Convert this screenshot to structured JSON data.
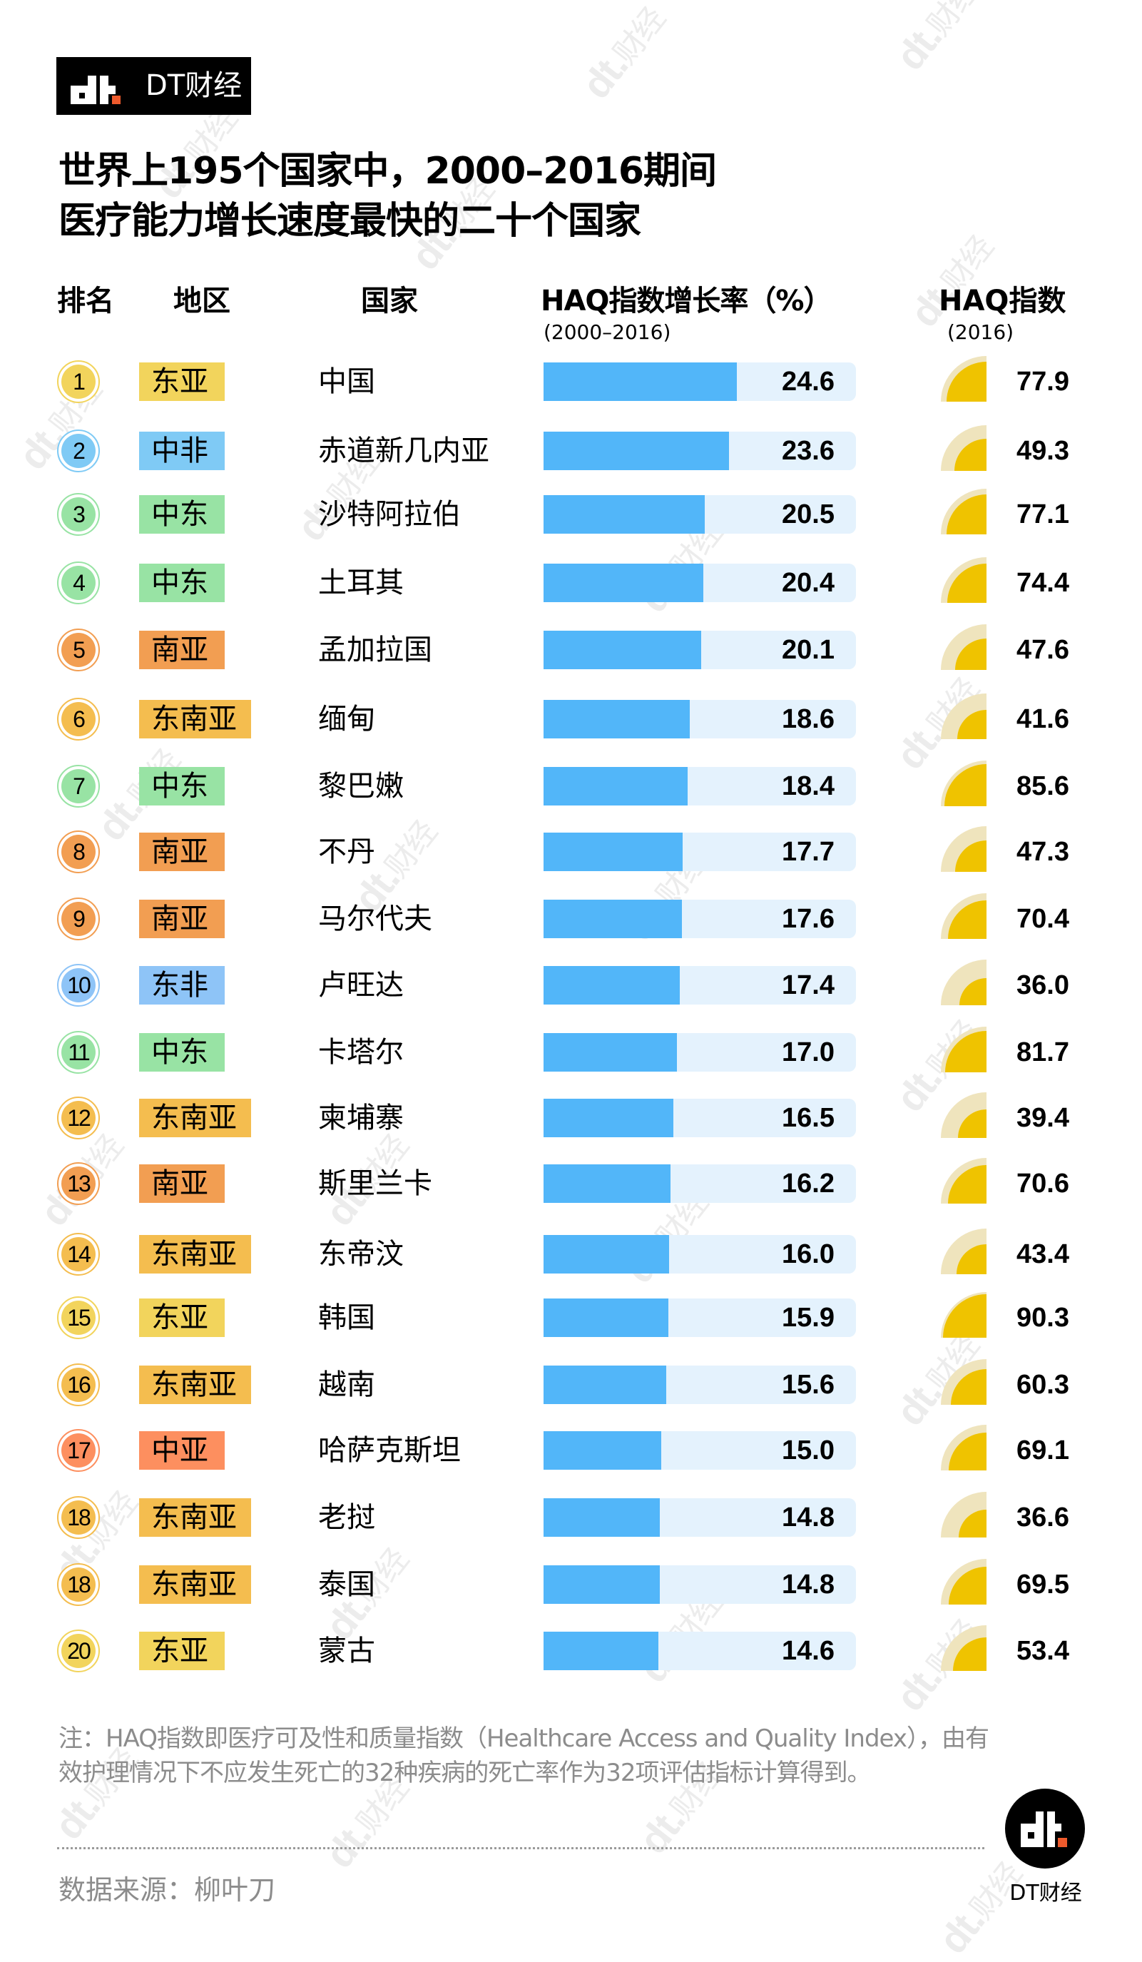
{
  "brand": {
    "logo_text": "DT财经",
    "footer_logo_text": "DT财经",
    "watermark": "财经"
  },
  "title": {
    "line1": "世界上195个国家中，2000–2016期间",
    "line2": "医疗能力增长速度最快的二十个国家"
  },
  "headers": {
    "rank": "排名",
    "region": "地区",
    "country": "国家",
    "growth": "HAQ指数增长率（%）",
    "growth_sub": "(2000–2016)",
    "haq": "HAQ指数",
    "haq_sub": "(2016)"
  },
  "colors": {
    "bar": "#52b6f9",
    "track": "#e4f2fd",
    "haq_fill": "#efc300",
    "haq_bg": "#efe4bd",
    "regions": {
      "东亚": "#f2d45c",
      "中非": "#7fcaf5",
      "东非": "#8ec4f7",
      "中东": "#98e3a4",
      "南亚": "#f29e52",
      "东南亚": "#f4bd4f",
      "中亚": "#fd8f5f"
    }
  },
  "rows": [
    {
      "rank": "1",
      "region": "东亚",
      "country": "中国",
      "growth": "24.6",
      "haq": "77.9"
    },
    {
      "rank": "2",
      "region": "中非",
      "country": "赤道新几内亚",
      "growth": "23.6",
      "haq": "49.3"
    },
    {
      "rank": "3",
      "region": "中东",
      "country": "沙特阿拉伯",
      "growth": "20.5",
      "haq": "77.1"
    },
    {
      "rank": "4",
      "region": "中东",
      "country": "土耳其",
      "growth": "20.4",
      "haq": "74.4"
    },
    {
      "rank": "5",
      "region": "南亚",
      "country": "孟加拉国",
      "growth": "20.1",
      "haq": "47.6"
    },
    {
      "rank": "6",
      "region": "东南亚",
      "country": "缅甸",
      "growth": "18.6",
      "haq": "41.6"
    },
    {
      "rank": "7",
      "region": "中东",
      "country": "黎巴嫩",
      "growth": "18.4",
      "haq": "85.6"
    },
    {
      "rank": "8",
      "region": "南亚",
      "country": "不丹",
      "growth": "17.7",
      "haq": "47.3"
    },
    {
      "rank": "9",
      "region": "南亚",
      "country": "马尔代夫",
      "growth": "17.6",
      "haq": "70.4"
    },
    {
      "rank": "10",
      "region": "东非",
      "country": "卢旺达",
      "growth": "17.4",
      "haq": "36.0"
    },
    {
      "rank": "11",
      "region": "中东",
      "country": "卡塔尔",
      "growth": "17.0",
      "haq": "81.7"
    },
    {
      "rank": "12",
      "region": "东南亚",
      "country": "柬埔寨",
      "growth": "16.5",
      "haq": "39.4"
    },
    {
      "rank": "13",
      "region": "南亚",
      "country": "斯里兰卡",
      "growth": "16.2",
      "haq": "70.6"
    },
    {
      "rank": "14",
      "region": "东南亚",
      "country": "东帝汶",
      "growth": "16.0",
      "haq": "43.4"
    },
    {
      "rank": "15",
      "region": "东亚",
      "country": "韩国",
      "growth": "15.9",
      "haq": "90.3"
    },
    {
      "rank": "16",
      "region": "东南亚",
      "country": "越南",
      "growth": "15.6",
      "haq": "60.3"
    },
    {
      "rank": "17",
      "region": "中亚",
      "country": "哈萨克斯坦",
      "growth": "15.0",
      "haq": "69.1"
    },
    {
      "rank": "18",
      "region": "东南亚",
      "country": "老挝",
      "growth": "14.8",
      "haq": "36.6"
    },
    {
      "rank": "18",
      "region": "东南亚",
      "country": "泰国",
      "growth": "14.8",
      "haq": "69.5"
    },
    {
      "rank": "20",
      "region": "东亚",
      "country": "蒙古",
      "growth": "14.6",
      "haq": "53.4"
    }
  ],
  "footer": {
    "note": "注：HAQ指数即医疗可及性和质量指数（Healthcare Access and Quality Index），由有效护理情况下不应发生死亡的32种疾病的死亡率作为32项评估指标计算得到。",
    "source": "数据来源：柳叶刀"
  },
  "chart_data": {
    "type": "table",
    "title": "世界上195个国家中，2000–2016期间医疗能力增长速度最快的二十个国家",
    "columns": [
      "排名",
      "地区",
      "国家",
      "HAQ指数增长率（%）(2000–2016)",
      "HAQ指数(2016)"
    ],
    "categories": [
      "中国",
      "赤道新几内亚",
      "沙特阿拉伯",
      "土耳其",
      "孟加拉国",
      "缅甸",
      "黎巴嫩",
      "不丹",
      "马尔代夫",
      "卢旺达",
      "卡塔尔",
      "柬埔寨",
      "斯里兰卡",
      "东帝汶",
      "韩国",
      "越南",
      "哈萨克斯坦",
      "老挝",
      "泰国",
      "蒙古"
    ],
    "regions": [
      "东亚",
      "中非",
      "中东",
      "中东",
      "南亚",
      "东南亚",
      "中东",
      "南亚",
      "南亚",
      "东非",
      "中东",
      "东南亚",
      "南亚",
      "东南亚",
      "东亚",
      "东南亚",
      "中亚",
      "东南亚",
      "东南亚",
      "东亚"
    ],
    "ranks": [
      1,
      2,
      3,
      4,
      5,
      6,
      7,
      8,
      9,
      10,
      11,
      12,
      13,
      14,
      15,
      16,
      17,
      18,
      18,
      20
    ],
    "series": [
      {
        "name": "HAQ指数增长率（%）2000–2016",
        "type": "bar",
        "values": [
          24.6,
          23.6,
          20.5,
          20.4,
          20.1,
          18.6,
          18.4,
          17.7,
          17.6,
          17.4,
          17.0,
          16.5,
          16.2,
          16.0,
          15.9,
          15.6,
          15.0,
          14.8,
          14.8,
          14.6
        ]
      },
      {
        "name": "HAQ指数 2016",
        "type": "quarter-pie",
        "values": [
          77.9,
          49.3,
          77.1,
          74.4,
          47.6,
          41.6,
          85.6,
          47.3,
          70.4,
          36.0,
          81.7,
          39.4,
          70.6,
          43.4,
          90.3,
          60.3,
          69.1,
          36.6,
          69.5,
          53.4
        ]
      }
    ],
    "note": "HAQ指数即医疗可及性和质量指数（Healthcare Access and Quality Index）",
    "source": "柳叶刀"
  }
}
